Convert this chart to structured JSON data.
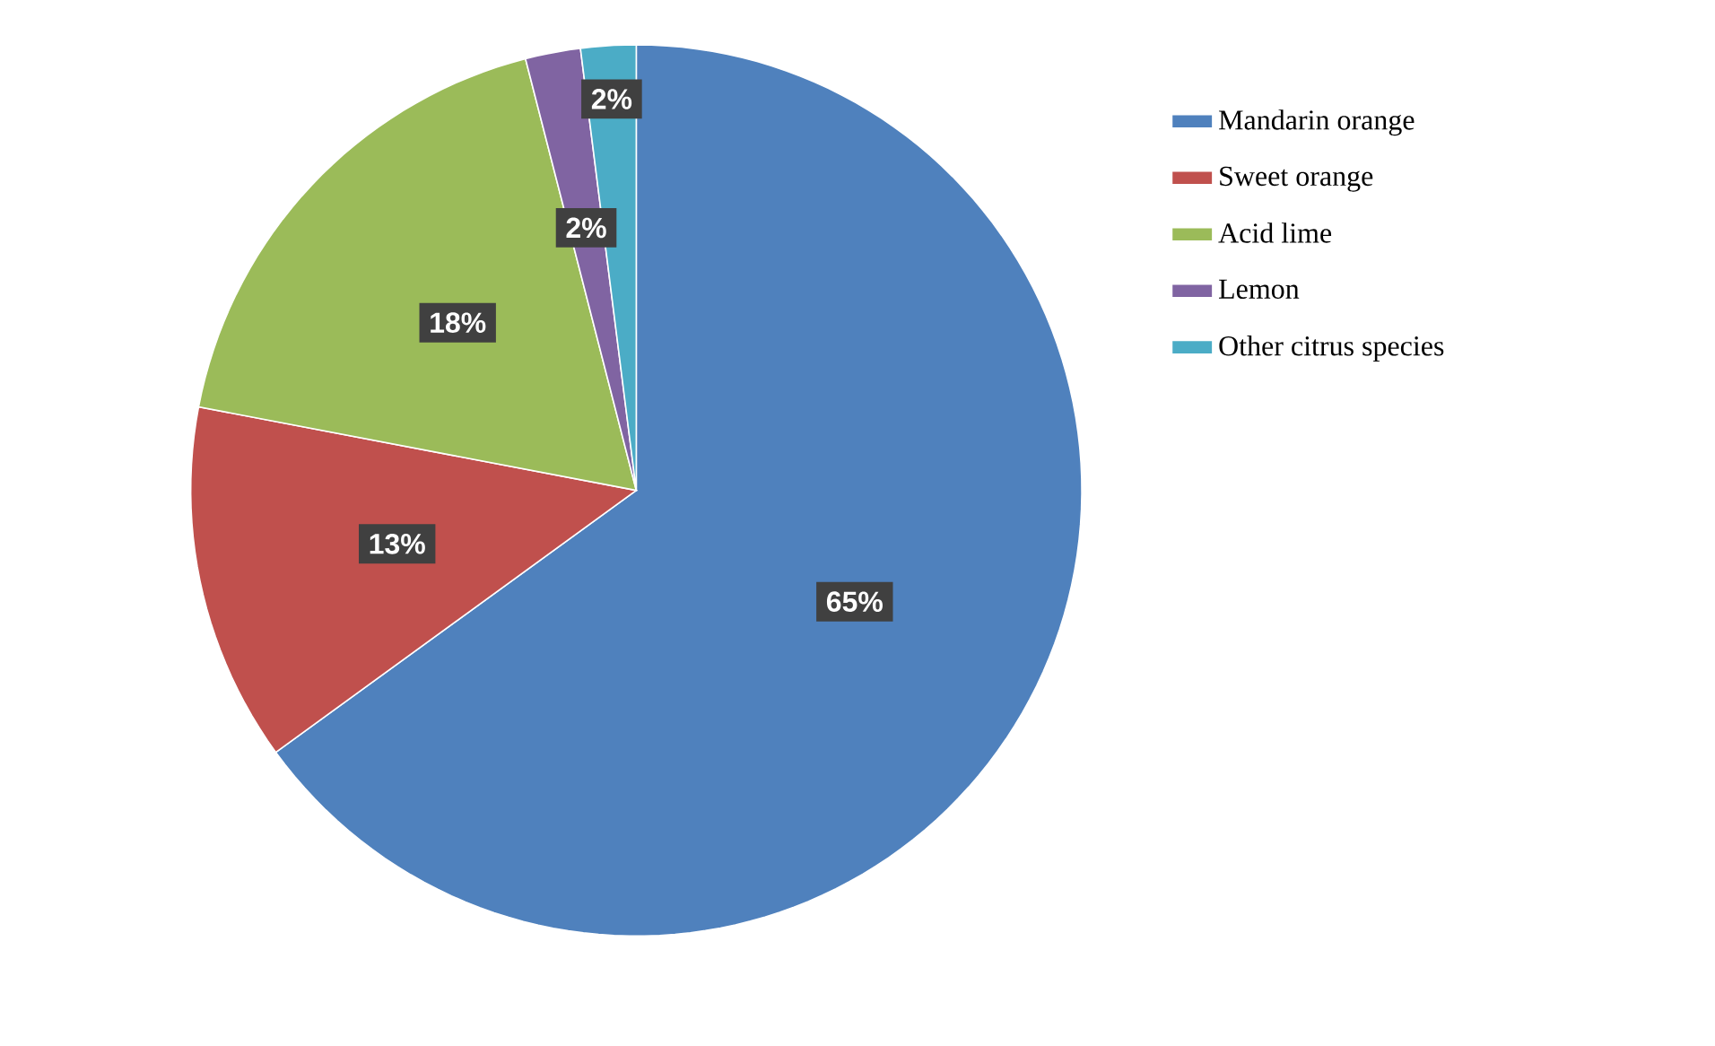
{
  "chart_data": {
    "type": "pie",
    "categories": [
      "Mandarin orange",
      "Sweet orange",
      "Acid lime",
      "Lemon",
      "Other citrus species"
    ],
    "values": [
      65,
      13,
      18,
      2,
      2
    ],
    "value_labels": [
      "65%",
      "13%",
      "18%",
      "2%",
      "2%"
    ],
    "colors": [
      "#4f81bd",
      "#c0504d",
      "#9bbb59",
      "#8064a2",
      "#4bacc6"
    ],
    "legend": "top right"
  }
}
